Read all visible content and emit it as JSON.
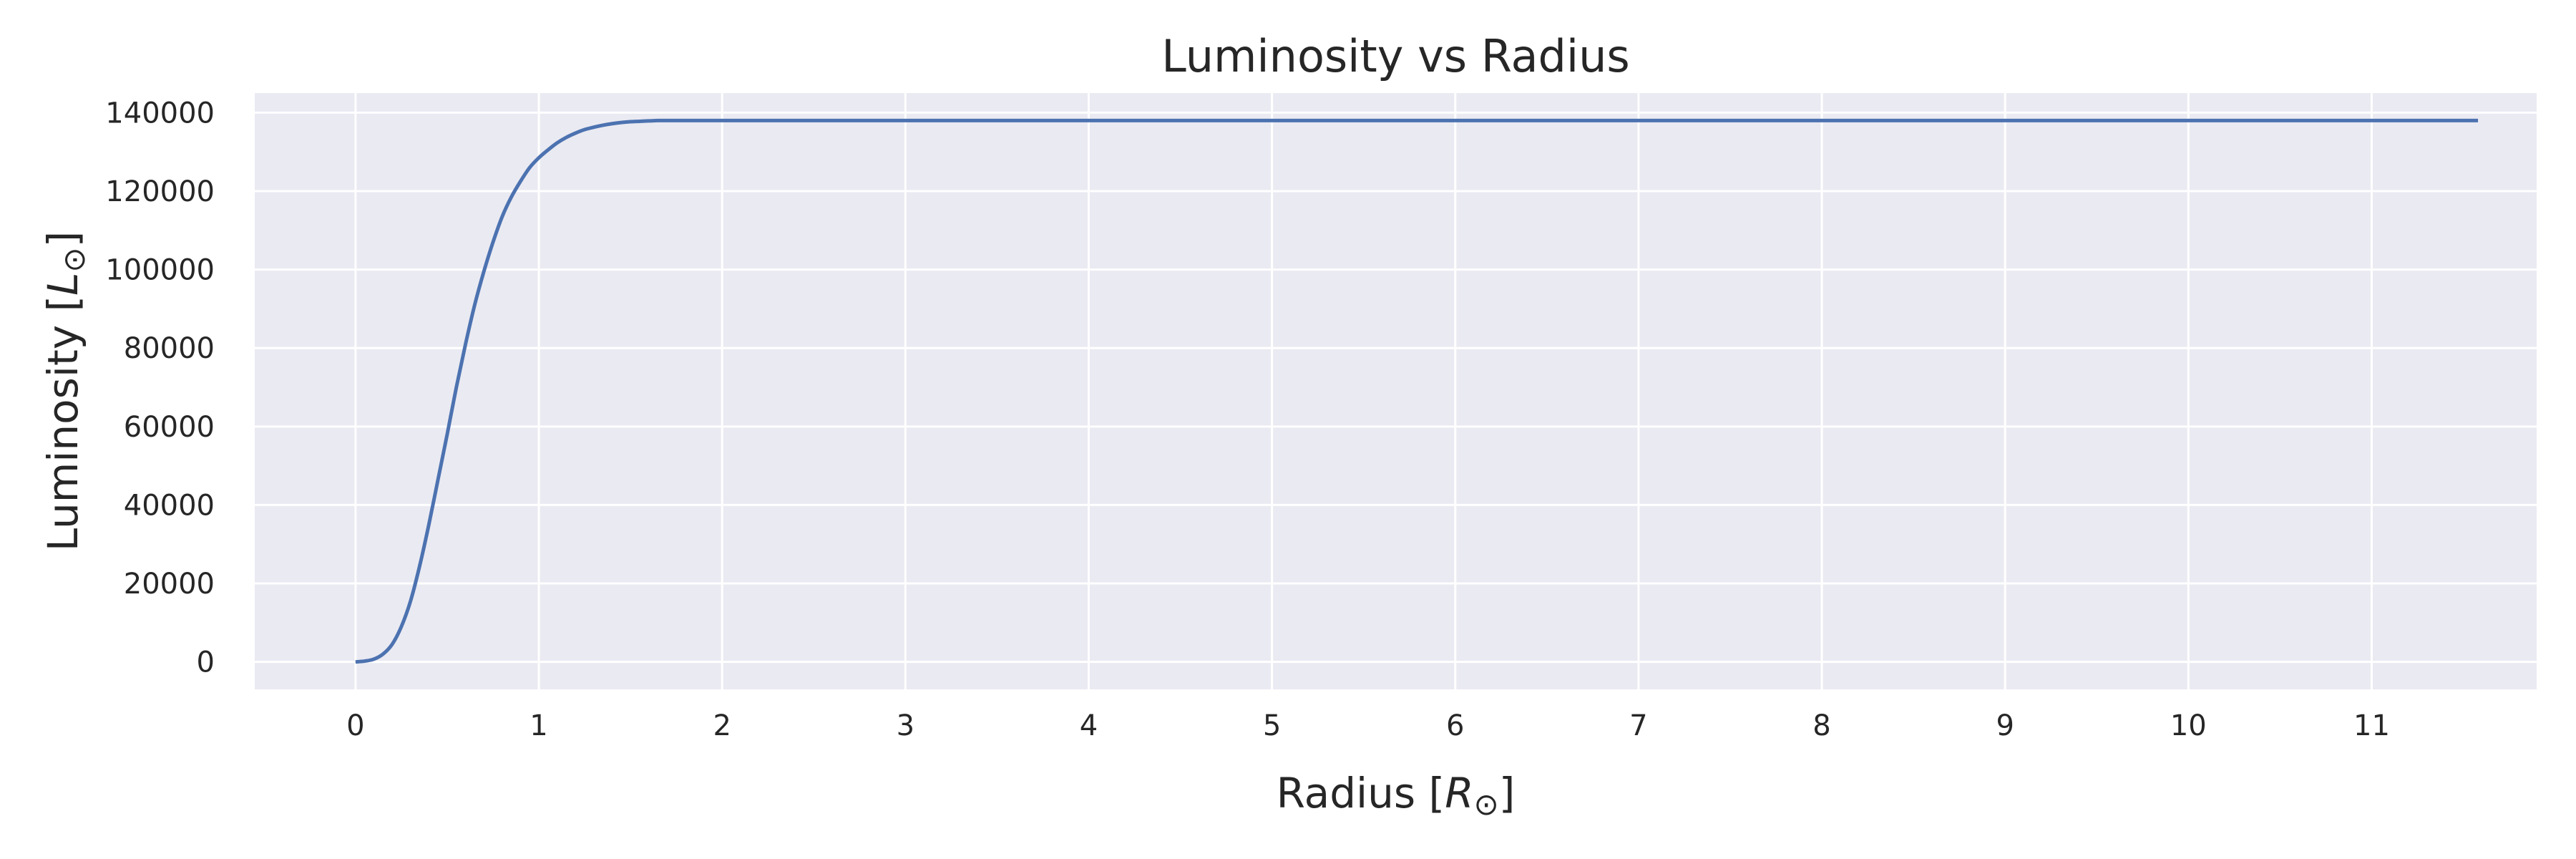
{
  "chart_data": {
    "type": "line",
    "title": "Luminosity vs Radius",
    "xlabel": {
      "prefix": "Radius [",
      "symbol": "R",
      "sub": "⊙",
      "suffix": "]"
    },
    "ylabel": {
      "prefix": "Luminosity [",
      "symbol": "L",
      "sub": "⊙",
      "suffix": "]"
    },
    "xlim": [
      -0.55,
      11.9
    ],
    "ylim": [
      -7000,
      145000
    ],
    "xticks": [
      0,
      1,
      2,
      3,
      4,
      5,
      6,
      7,
      8,
      9,
      10,
      11
    ],
    "yticks": [
      0,
      20000,
      40000,
      60000,
      80000,
      100000,
      120000,
      140000
    ],
    "grid": true,
    "background_color": "#eaeaf2",
    "grid_color": "#ffffff",
    "series": [
      {
        "color": "#4c72b0",
        "x": [
          0.0,
          0.05,
          0.1,
          0.15,
          0.2,
          0.25,
          0.3,
          0.35,
          0.4,
          0.45,
          0.5,
          0.55,
          0.6,
          0.65,
          0.7,
          0.75,
          0.8,
          0.85,
          0.9,
          0.95,
          1.0,
          1.05,
          1.1,
          1.15,
          1.2,
          1.25,
          1.3,
          1.35,
          1.4,
          1.45,
          1.5,
          1.55,
          1.6,
          1.65,
          1.7,
          1.8,
          1.9,
          2.0,
          2.5,
          3.0,
          4.0,
          5.0,
          6.0,
          7.0,
          8.0,
          9.0,
          10.0,
          11.0,
          11.58
        ],
        "y": [
          0,
          200,
          700,
          2000,
          4500,
          9000,
          15500,
          24500,
          35000,
          46500,
          58000,
          70000,
          81000,
          91000,
          99500,
          107000,
          113500,
          118500,
          122500,
          126000,
          128500,
          130500,
          132300,
          133700,
          134800,
          135700,
          136300,
          136800,
          137200,
          137500,
          137700,
          137800,
          137900,
          138000,
          138000,
          138000,
          138000,
          138000,
          138000,
          138000,
          138000,
          138000,
          138000,
          138000,
          138000,
          138000,
          138000,
          138000,
          138000
        ]
      }
    ]
  }
}
